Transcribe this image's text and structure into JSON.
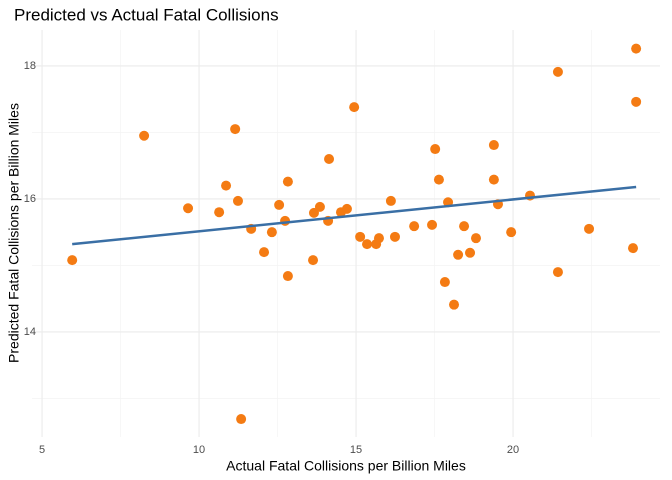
{
  "chart_data": {
    "type": "scatter",
    "title": "Predicted vs Actual Fatal Collisions",
    "x_label": "Actual Fatal Collisions per Billion Miles",
    "y_label": "Predicted Fatal Collisions per Billion Miles",
    "xlim": [
      4.68,
      24.68
    ],
    "ylim": [
      12.42,
      18.54
    ],
    "xticks": [
      5,
      10,
      15,
      20
    ],
    "yticks": [
      14,
      16,
      18
    ],
    "grid": true,
    "minor_grid": true,
    "series": [
      {
        "name": "points",
        "color": "#f47b13",
        "x": [
          5.96,
          8.25,
          9.65,
          10.64,
          10.86,
          11.15,
          11.24,
          11.34,
          11.66,
          12.07,
          12.32,
          12.55,
          12.74,
          12.83,
          12.83,
          13.63,
          13.66,
          13.85,
          14.11,
          14.14,
          14.52,
          14.71,
          14.94,
          15.13,
          15.35,
          15.64,
          15.73,
          16.11,
          16.24,
          16.85,
          17.42,
          17.52,
          17.64,
          17.83,
          17.93,
          18.12,
          18.25,
          18.44,
          18.63,
          18.82,
          19.39,
          19.39,
          19.52,
          19.94,
          20.54,
          21.43,
          21.43,
          22.42,
          23.82,
          23.92,
          23.92
        ],
        "values": [
          15.08,
          16.95,
          15.86,
          15.8,
          16.2,
          17.05,
          15.97,
          12.69,
          15.55,
          15.2,
          15.5,
          15.91,
          15.67,
          16.26,
          14.84,
          15.08,
          15.79,
          15.88,
          15.67,
          16.6,
          15.8,
          15.85,
          17.38,
          15.43,
          15.32,
          15.32,
          15.41,
          15.97,
          15.43,
          15.59,
          15.61,
          16.75,
          16.29,
          14.75,
          15.95,
          14.41,
          15.16,
          15.59,
          15.19,
          15.41,
          16.81,
          16.29,
          15.92,
          15.5,
          16.05,
          17.91,
          14.9,
          15.55,
          15.26,
          18.26,
          17.46
        ]
      },
      {
        "name": "fit",
        "type": "line",
        "color": "#3a6fa5",
        "x": [
          5.96,
          23.92
        ],
        "values": [
          15.32,
          16.18
        ]
      }
    ]
  }
}
